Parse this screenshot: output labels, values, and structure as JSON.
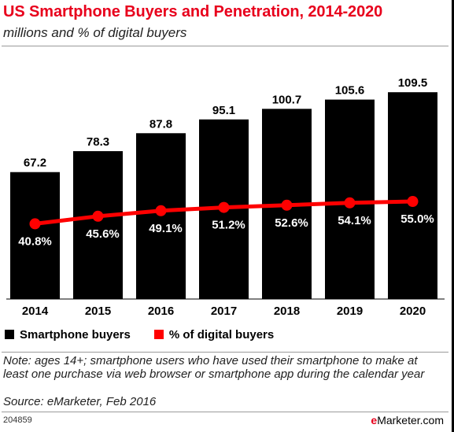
{
  "title": "US Smartphone Buyers and Penetration, 2014-2020",
  "subtitle": "millions and % of digital buyers",
  "note": "Note: ages 14+; smartphone users who have used their smartphone to make at least one purchase via web browser or smartphone app during the calendar year",
  "source": "Source: eMarketer, Feb 2016",
  "chart_id": "204859",
  "logo": {
    "prefix": "e",
    "suffix": "Marketer",
    "domain": ".com"
  },
  "colors": {
    "title": "#e8001c",
    "bars": "#000000",
    "line": "#ff0000"
  },
  "chart_data": {
    "type": "bar",
    "categories": [
      "2014",
      "2015",
      "2016",
      "2017",
      "2018",
      "2019",
      "2020"
    ],
    "series": [
      {
        "name": "Smartphone buyers",
        "type": "bar",
        "values": [
          67.2,
          78.3,
          87.8,
          95.1,
          100.7,
          105.6,
          109.5
        ],
        "labels": [
          "67.2",
          "78.3",
          "87.8",
          "95.1",
          "100.7",
          "105.6",
          "109.5"
        ],
        "color": "#000000"
      },
      {
        "name": "% of digital buyers",
        "type": "line",
        "values": [
          40.8,
          45.6,
          49.1,
          51.2,
          52.6,
          54.1,
          55.0
        ],
        "labels": [
          "40.8%",
          "45.6%",
          "49.1%",
          "51.2%",
          "52.6%",
          "54.1%",
          "55.0%"
        ],
        "color": "#ff0000"
      }
    ],
    "legend_position": "bottom-left",
    "grid": false
  }
}
